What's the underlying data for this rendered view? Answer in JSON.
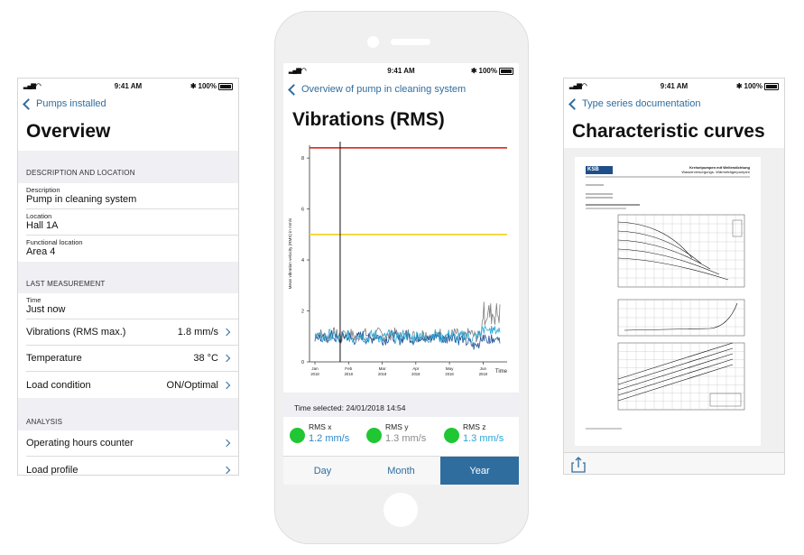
{
  "status": {
    "time": "9:41 AM",
    "battery": "100%"
  },
  "colors": {
    "accent": "#2f6d9f",
    "rms_ok": "#1fc733",
    "limit_red": "#e0261f",
    "limit_yellow": "#f2d023"
  },
  "left": {
    "back_label": "Pumps installed",
    "title": "Overview",
    "desc_section": "DESCRIPTION AND LOCATION",
    "fields": [
      {
        "label": "Description",
        "value": "Pump in cleaning system"
      },
      {
        "label": "Location",
        "value": "Hall 1A"
      },
      {
        "label": "Functional location",
        "value": "Area 4"
      }
    ],
    "last_section": "LAST MEASUREMENT",
    "time_field": {
      "label": "Time",
      "value": "Just now"
    },
    "measurements": [
      {
        "label": "Vibrations (RMS max.)",
        "value": "1.8 mm/s"
      },
      {
        "label": "Temperature",
        "value": "38 °C"
      },
      {
        "label": "Load condition",
        "value": "ON/Optimal"
      }
    ],
    "analysis_section": "ANALYSIS",
    "analysis_items": [
      {
        "label": "Operating hours counter"
      },
      {
        "label": "Load profile"
      }
    ]
  },
  "middle": {
    "back_label": "Overview of pump in cleaning system",
    "title": "Vibrations (RMS)",
    "time_selected": "Time selected: 24/01/2018 14:54",
    "rms": [
      {
        "name": "RMS x",
        "value": "1.2 mm/s",
        "color": "#2f86c8"
      },
      {
        "name": "RMS y",
        "value": "1.3 mm/s",
        "color": "#8a8a8a"
      },
      {
        "name": "RMS z",
        "value": "1.3 mm/s",
        "color": "#2aa6d6"
      }
    ],
    "segments": [
      {
        "label": "Day",
        "active": false
      },
      {
        "label": "Month",
        "active": false
      },
      {
        "label": "Year",
        "active": true
      }
    ]
  },
  "chart_data": {
    "type": "line",
    "ylabel": "Mean vibration velocity (RMS) in mm/s",
    "xlabel": "Time",
    "ylim": [
      0,
      8.5
    ],
    "yticks": [
      0,
      2,
      4,
      6,
      8
    ],
    "xticks": [
      {
        "label": "Jan",
        "year": "2018"
      },
      {
        "label": "Feb",
        "year": "2018"
      },
      {
        "label": "Mar",
        "year": "2018"
      },
      {
        "label": "Apr",
        "year": "2018"
      },
      {
        "label": "May",
        "year": "2018"
      },
      {
        "label": "Jun",
        "year": "2018"
      }
    ],
    "limits": [
      {
        "value": 8.4,
        "color": "#e0261f"
      },
      {
        "value": 5.0,
        "color": "#f2d023"
      }
    ],
    "cursor_month": 0.75,
    "series": [
      {
        "color": "#7f7f7f",
        "base": 1.05,
        "spike": 1.9
      },
      {
        "color": "#1f4f95",
        "base": 0.95,
        "spike": 0.9
      },
      {
        "color": "#2aa6d6",
        "base": 1.0,
        "spike": 1.25
      }
    ],
    "grid": false
  },
  "right": {
    "back_label": "Type series documentation",
    "title": "Characteristic curves",
    "doc_header": "Kreiselpumpen mit Wellendichtung",
    "doc_subheader": "Wasserversorgungs- Wärmeträgerpumpen",
    "doc_logo": "KSB"
  }
}
